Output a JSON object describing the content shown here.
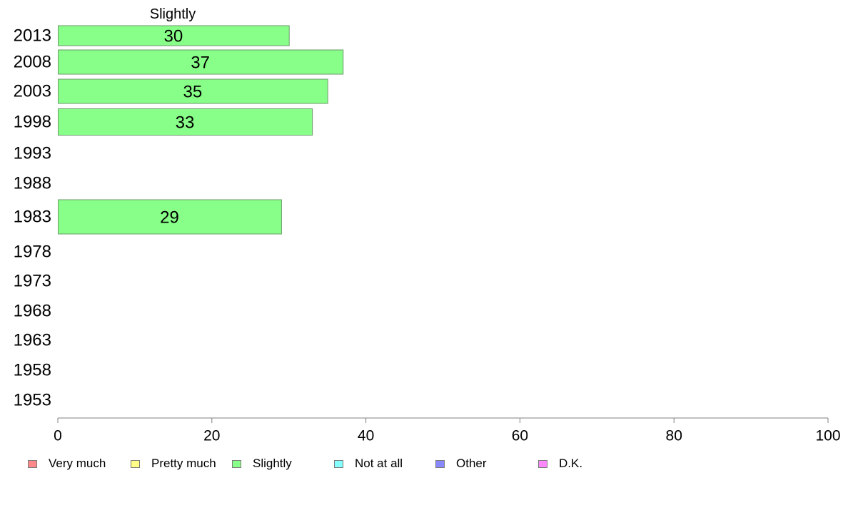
{
  "chart_data": {
    "type": "bar",
    "orientation": "horizontal",
    "panel_title": "Slightly",
    "categories": [
      "2013",
      "2008",
      "2003",
      "1998",
      "1993",
      "1988",
      "1983",
      "1978",
      "1973",
      "1968",
      "1963",
      "1958",
      "1953"
    ],
    "series": [
      {
        "name": "Slightly",
        "values": [
          30,
          37,
          35,
          33,
          null,
          null,
          29,
          null,
          null,
          null,
          null,
          null,
          null
        ]
      }
    ],
    "xlim": [
      0,
      100
    ],
    "xticks": [
      "0",
      "20",
      "40",
      "60",
      "80",
      "100"
    ],
    "legend": {
      "placement": "bottom",
      "items": [
        {
          "label": "Very much",
          "color": "#ff8888"
        },
        {
          "label": "Pretty much",
          "color": "#ffff88"
        },
        {
          "label": "Slightly",
          "color": "#88ff88"
        },
        {
          "label": "Not at all",
          "color": "#88ffff"
        },
        {
          "label": "Other",
          "color": "#8888ff"
        },
        {
          "label": "D.K.",
          "color": "#ff88ff"
        }
      ]
    },
    "bar_color": "#88ff88"
  }
}
